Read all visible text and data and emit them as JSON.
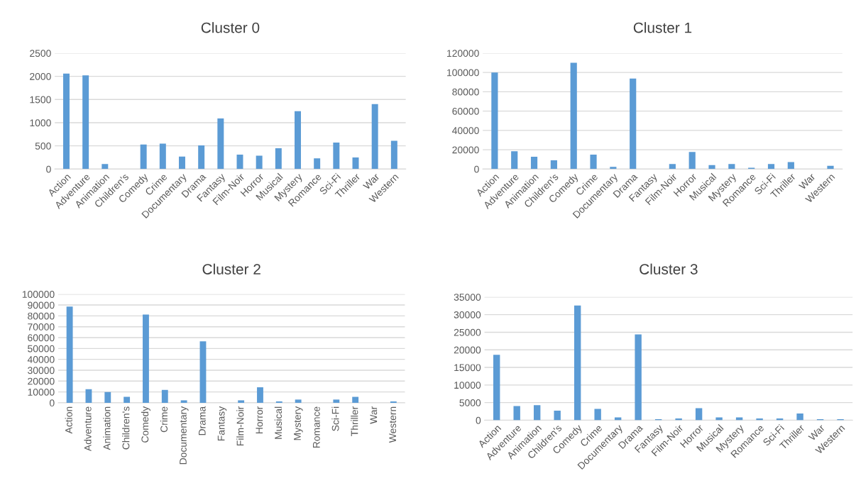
{
  "chart_data": [
    {
      "type": "bar",
      "title": "Cluster 0",
      "categories": [
        "Action",
        "Adventure",
        "Animation",
        "Children's",
        "Comedy",
        "Crime",
        "Documentary",
        "Drama",
        "Fantasy",
        "Film-Noir",
        "Horror",
        "Musical",
        "Mystery",
        "Romance",
        "Sci-Fi",
        "Thriller",
        "War",
        "Western"
      ],
      "values": [
        2060,
        2020,
        110,
        0,
        530,
        550,
        270,
        510,
        1090,
        310,
        290,
        450,
        1250,
        230,
        570,
        250,
        1400,
        610
      ],
      "color": "#5b9bd5",
      "ylim": [
        0,
        2500
      ],
      "yticks": [
        0,
        500,
        1000,
        1500,
        2000,
        2500
      ],
      "grid": "y"
    },
    {
      "type": "bar",
      "title": "Cluster 1",
      "categories": [
        "Action",
        "Adventure",
        "Animation",
        "Children's",
        "Comedy",
        "Crime",
        "Documentary",
        "Drama",
        "Fantasy",
        "Film-Noir",
        "Horror",
        "Musical",
        "Mystery",
        "Romance",
        "Sci-Fi",
        "Thriller",
        "War",
        "Western"
      ],
      "values": [
        100000,
        18500,
        12700,
        9100,
        110000,
        15000,
        2200,
        93600,
        0,
        5200,
        17700,
        4100,
        5200,
        1400,
        5200,
        7200,
        0,
        3300
      ],
      "color": "#5b9bd5",
      "ylim": [
        0,
        120000
      ],
      "yticks": [
        0,
        20000,
        40000,
        60000,
        80000,
        100000,
        120000
      ],
      "grid": "y"
    },
    {
      "type": "bar",
      "title": "Cluster 2",
      "categories": [
        "Action",
        "Adventure",
        "Animation",
        "Children's",
        "Comedy",
        "Crime",
        "Documentary",
        "Drama",
        "Fantasy",
        "Film-Noir",
        "Horror",
        "Musical",
        "Mystery",
        "Romance",
        "Sci-Fi",
        "Thriller",
        "War",
        "Western"
      ],
      "values": [
        88500,
        12500,
        10000,
        5500,
        81200,
        11800,
        2300,
        56600,
        0,
        2300,
        14300,
        1300,
        3000,
        0,
        3000,
        5500,
        0,
        1300
      ],
      "color": "#5b9bd5",
      "ylim": [
        0,
        100000
      ],
      "yticks": [
        0,
        10000,
        20000,
        30000,
        40000,
        50000,
        60000,
        70000,
        80000,
        90000,
        100000
      ],
      "grid": "y"
    },
    {
      "type": "bar",
      "title": "Cluster 3",
      "categories": [
        "Action",
        "Adventure",
        "Animation",
        "Children's",
        "Comedy",
        "Crime",
        "Documentary",
        "Drama",
        "Fantasy",
        "Film-Noir",
        "Horror",
        "Musical",
        "Mystery",
        "Romance",
        "Sci-Fi",
        "Thriller",
        "War",
        "Western"
      ],
      "values": [
        18600,
        4000,
        4300,
        2700,
        32600,
        3200,
        800,
        24400,
        300,
        500,
        3400,
        800,
        800,
        500,
        500,
        1900,
        300,
        300
      ],
      "color": "#5b9bd5",
      "ylim": [
        0,
        35000
      ],
      "yticks": [
        0,
        5000,
        10000,
        15000,
        20000,
        25000,
        30000,
        35000
      ],
      "grid": "y"
    }
  ]
}
